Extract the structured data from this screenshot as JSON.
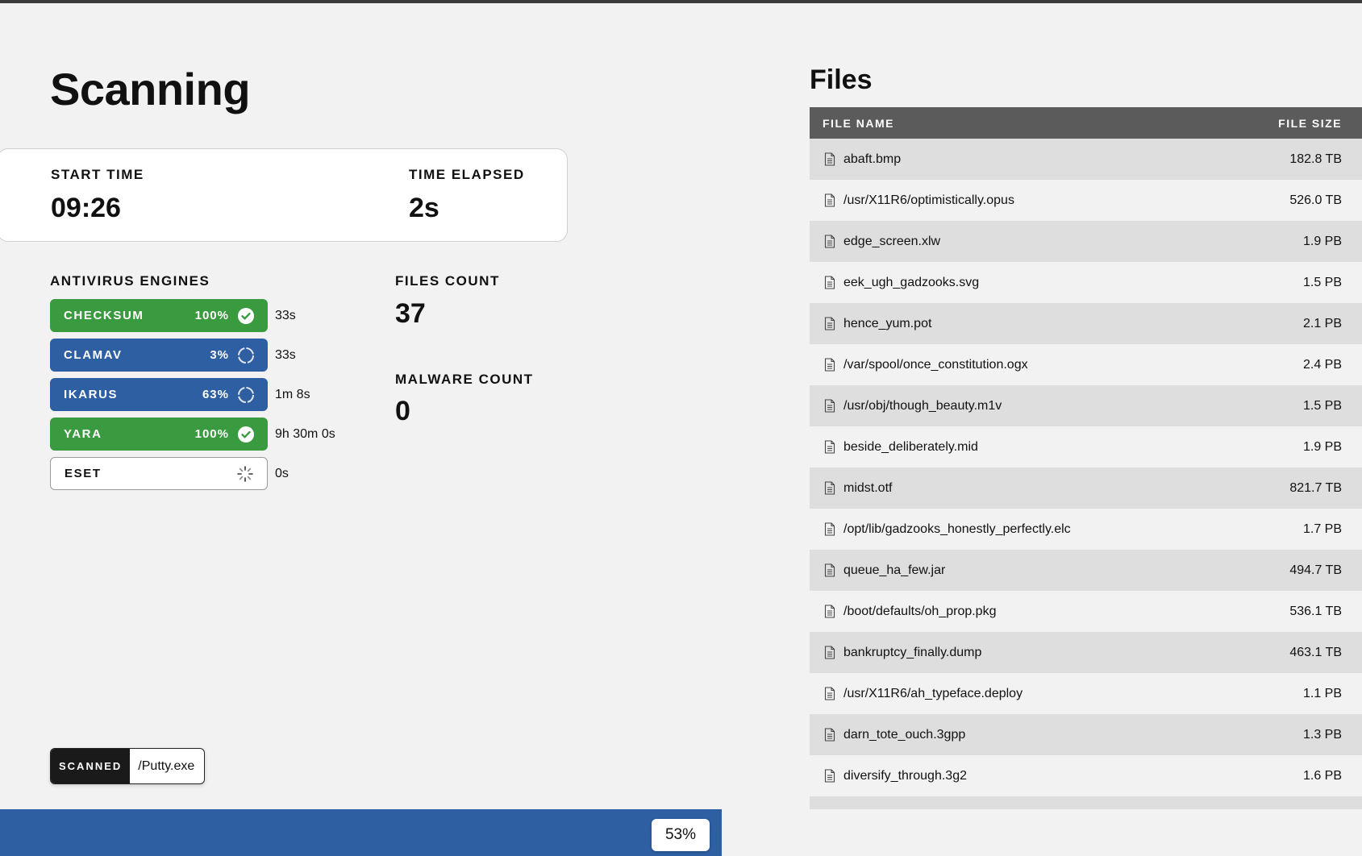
{
  "page": {
    "title": "Scanning"
  },
  "times": {
    "start_label": "START TIME",
    "start_value": "09:26",
    "elapsed_label": "TIME ELAPSED",
    "elapsed_value": "2s"
  },
  "engines_label": "ANTIVIRUS ENGINES",
  "engines": [
    {
      "name": "CHECKSUM",
      "percent": "100%",
      "status": "done",
      "time": "33s",
      "icon": "check-icon"
    },
    {
      "name": "CLAMAV",
      "percent": "3%",
      "status": "running",
      "time": "33s",
      "icon": "progress-ring-icon"
    },
    {
      "name": "IKARUS",
      "percent": "63%",
      "status": "running",
      "time": "1m 8s",
      "icon": "progress-ring-icon"
    },
    {
      "name": "YARA",
      "percent": "100%",
      "status": "done",
      "time": "9h 30m 0s",
      "icon": "check-icon"
    },
    {
      "name": "ESET",
      "percent": "",
      "status": "pending",
      "time": "0s",
      "icon": "spinner-icon"
    }
  ],
  "counts": {
    "files_label": "FILES COUNT",
    "files_value": "37",
    "malware_label": "MALWARE COUNT",
    "malware_value": "0"
  },
  "scanned": {
    "tag": "SCANNED",
    "file": "/Putty.exe"
  },
  "progress": {
    "fraction": 0.53,
    "label": "53%"
  },
  "files": {
    "title": "Files",
    "col_name": "FILE NAME",
    "col_size": "FILE SIZE",
    "rows": [
      {
        "name": "abaft.bmp",
        "size": "182.8 TB"
      },
      {
        "name": "/usr/X11R6/optimistically.opus",
        "size": "526.0 TB"
      },
      {
        "name": "edge_screen.xlw",
        "size": "1.9 PB"
      },
      {
        "name": "eek_ugh_gadzooks.svg",
        "size": "1.5 PB"
      },
      {
        "name": "hence_yum.pot",
        "size": "2.1 PB"
      },
      {
        "name": "/var/spool/once_constitution.ogx",
        "size": "2.4 PB"
      },
      {
        "name": "/usr/obj/though_beauty.m1v",
        "size": "1.5 PB"
      },
      {
        "name": "beside_deliberately.mid",
        "size": "1.9 PB"
      },
      {
        "name": "midst.otf",
        "size": "821.7 TB"
      },
      {
        "name": "/opt/lib/gadzooks_honestly_perfectly.elc",
        "size": "1.7 PB"
      },
      {
        "name": "queue_ha_few.jar",
        "size": "494.7 TB"
      },
      {
        "name": "/boot/defaults/oh_prop.pkg",
        "size": "536.1 TB"
      },
      {
        "name": "bankruptcy_finally.dump",
        "size": "463.1 TB"
      },
      {
        "name": "/usr/X11R6/ah_typeface.deploy",
        "size": "1.1 PB"
      },
      {
        "name": "darn_tote_ouch.3gpp",
        "size": "1.3 PB"
      },
      {
        "name": "diversify_through.3g2",
        "size": "1.6 PB"
      }
    ]
  },
  "colors": {
    "done": "#3a9a40",
    "running": "#2e5fa3",
    "progress": "#2e5fa3",
    "table_header": "#5b5b5b"
  }
}
